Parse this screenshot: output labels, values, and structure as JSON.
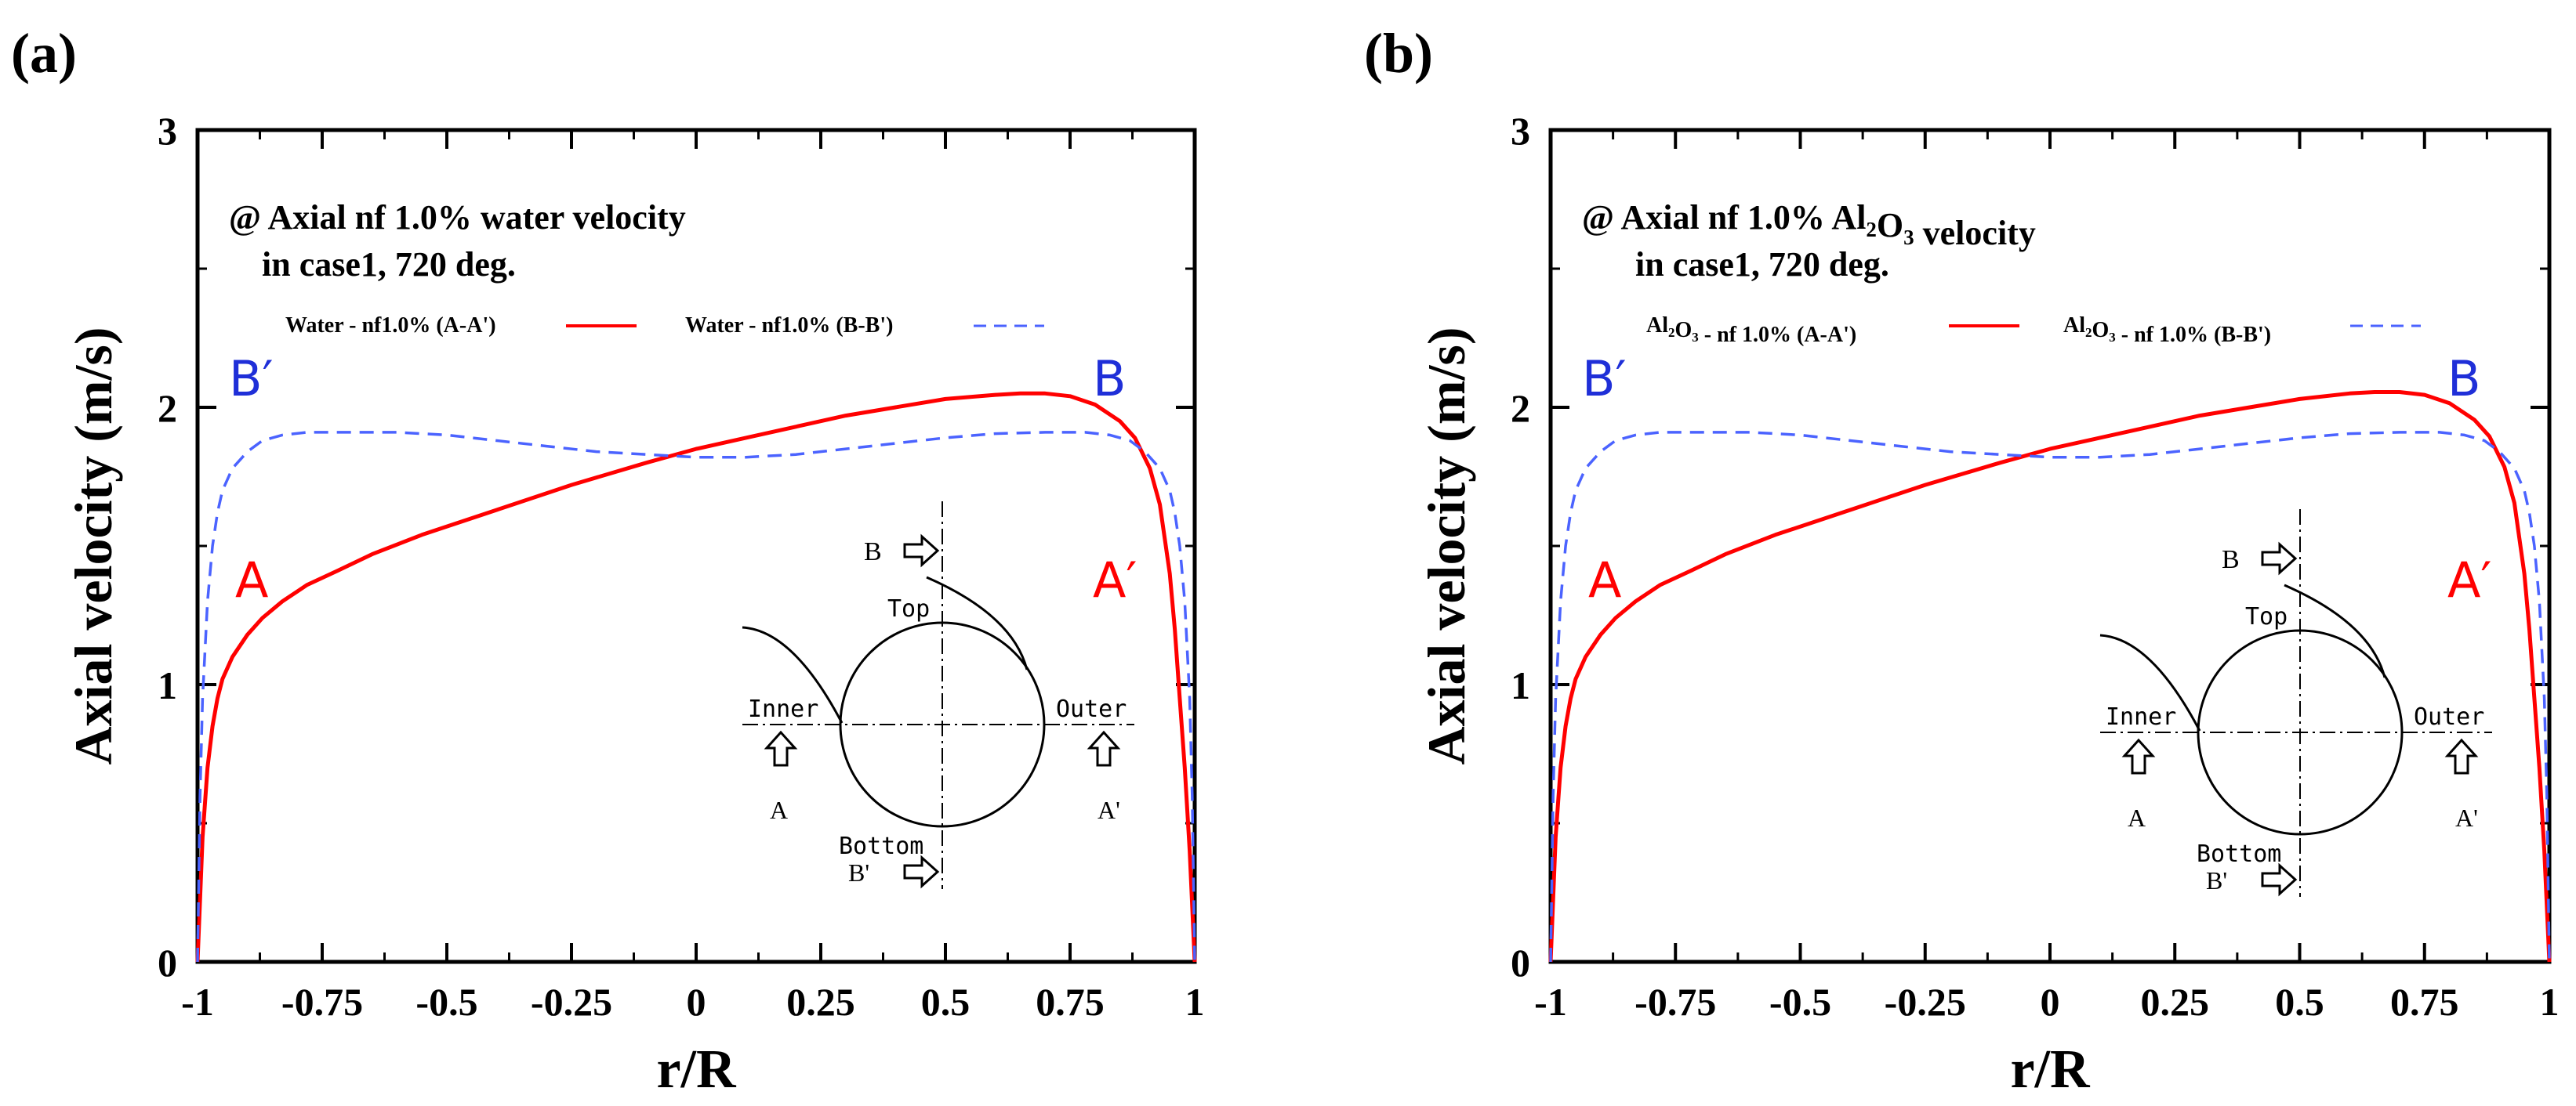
{
  "chart_data": [
    {
      "type": "line",
      "panel_label": "(a)",
      "annotation_lines": [
        "@ Axial nf 1.0% water velocity",
        "in case1, 720 deg."
      ],
      "xlabel": "r/R",
      "ylabel": "Axial velocity (m/s)",
      "xlim": [
        -1,
        1
      ],
      "ylim": [
        0,
        3
      ],
      "xticks": [
        -1,
        -0.75,
        -0.5,
        -0.25,
        0,
        0.25,
        0.5,
        0.75,
        1
      ],
      "xtick_labels": [
        "-1",
        "-0.75",
        "-0.5",
        "-0.25",
        "0",
        "0.25",
        "0.5",
        "0.75",
        "1"
      ],
      "yticks": [
        0,
        1,
        2,
        3
      ],
      "ytick_labels": [
        "0",
        "1",
        "2",
        "3"
      ],
      "grid": false,
      "legend_position": "top",
      "series": [
        {
          "name": "Water - nf1.0% (A-A')",
          "style": "solid",
          "color": "#ff0000",
          "x": [
            -1,
            -0.99,
            -0.98,
            -0.97,
            -0.96,
            -0.95,
            -0.93,
            -0.9,
            -0.87,
            -0.83,
            -0.78,
            -0.72,
            -0.65,
            -0.55,
            -0.4,
            -0.25,
            -0.1,
            0,
            0.1,
            0.2,
            0.3,
            0.4,
            0.5,
            0.6,
            0.65,
            0.7,
            0.75,
            0.8,
            0.85,
            0.88,
            0.91,
            0.93,
            0.95,
            0.96,
            0.97,
            0.98,
            0.99,
            1
          ],
          "y": [
            0,
            0.45,
            0.7,
            0.85,
            0.95,
            1.02,
            1.1,
            1.18,
            1.24,
            1.3,
            1.36,
            1.41,
            1.47,
            1.54,
            1.63,
            1.72,
            1.8,
            1.85,
            1.89,
            1.93,
            1.97,
            2.0,
            2.03,
            2.045,
            2.05,
            2.05,
            2.04,
            2.01,
            1.95,
            1.89,
            1.78,
            1.65,
            1.4,
            1.2,
            0.95,
            0.7,
            0.4,
            0
          ]
        },
        {
          "name": "Water - nf1.0% (B-B')",
          "style": "dashed",
          "color": "#4b63ff",
          "x": [
            -1,
            -0.995,
            -0.99,
            -0.98,
            -0.97,
            -0.96,
            -0.95,
            -0.93,
            -0.9,
            -0.87,
            -0.83,
            -0.78,
            -0.7,
            -0.6,
            -0.5,
            -0.4,
            -0.3,
            -0.2,
            -0.1,
            0,
            0.1,
            0.2,
            0.3,
            0.4,
            0.5,
            0.6,
            0.7,
            0.78,
            0.83,
            0.87,
            0.9,
            0.93,
            0.95,
            0.96,
            0.97,
            0.98,
            0.99,
            0.995,
            1
          ],
          "y": [
            0,
            0.6,
            0.95,
            1.3,
            1.5,
            1.62,
            1.7,
            1.78,
            1.84,
            1.88,
            1.9,
            1.91,
            1.91,
            1.91,
            1.9,
            1.88,
            1.86,
            1.84,
            1.83,
            1.82,
            1.82,
            1.83,
            1.85,
            1.87,
            1.89,
            1.905,
            1.91,
            1.91,
            1.9,
            1.88,
            1.84,
            1.78,
            1.7,
            1.62,
            1.5,
            1.3,
            0.95,
            0.6,
            0
          ]
        }
      ],
      "overlay_labels": {
        "b_prime": "B′",
        "b": "B",
        "a": "A",
        "a_prime": "A′"
      },
      "diagram_labels": {
        "b": "B",
        "top": "Top",
        "inner": "Inner",
        "outer": "Outer",
        "a": "A",
        "a_prime": "A'",
        "bottom": "Bottom",
        "b_prime": "B'"
      }
    },
    {
      "type": "line",
      "panel_label": "(b)",
      "annotation_lines": [
        "@ Axial nf 1.0% Al₂O₃ velocity",
        "in case1, 720 deg."
      ],
      "xlabel": "r/R",
      "ylabel": "Axial velocity (m/s)",
      "xlim": [
        -1,
        1
      ],
      "ylim": [
        0,
        3
      ],
      "xticks": [
        -1,
        -0.75,
        -0.5,
        -0.25,
        0,
        0.25,
        0.5,
        0.75,
        1
      ],
      "xtick_labels": [
        "-1",
        "-0.75",
        "-0.5",
        "-0.25",
        "0",
        "0.25",
        "0.5",
        "0.75",
        "1"
      ],
      "yticks": [
        0,
        1,
        2,
        3
      ],
      "ytick_labels": [
        "0",
        "1",
        "2",
        "3"
      ],
      "grid": false,
      "legend_position": "top",
      "series": [
        {
          "name": "Al₂O₃ - nf 1.0% (A-A')",
          "style": "solid",
          "color": "#ff0000",
          "x": [
            -1,
            -0.99,
            -0.98,
            -0.97,
            -0.96,
            -0.95,
            -0.93,
            -0.9,
            -0.87,
            -0.83,
            -0.78,
            -0.72,
            -0.65,
            -0.55,
            -0.4,
            -0.25,
            -0.1,
            0,
            0.1,
            0.2,
            0.3,
            0.4,
            0.5,
            0.6,
            0.65,
            0.7,
            0.75,
            0.8,
            0.85,
            0.88,
            0.91,
            0.93,
            0.95,
            0.96,
            0.97,
            0.98,
            0.99,
            1
          ],
          "y": [
            0,
            0.45,
            0.7,
            0.85,
            0.95,
            1.02,
            1.1,
            1.18,
            1.24,
            1.3,
            1.36,
            1.41,
            1.47,
            1.54,
            1.63,
            1.72,
            1.8,
            1.85,
            1.89,
            1.93,
            1.97,
            2.0,
            2.03,
            2.05,
            2.055,
            2.055,
            2.045,
            2.015,
            1.955,
            1.895,
            1.785,
            1.655,
            1.4,
            1.2,
            0.95,
            0.7,
            0.4,
            0
          ]
        },
        {
          "name": "Al₂O₃ - nf 1.0% (B-B')",
          "style": "dashed",
          "color": "#4b63ff",
          "x": [
            -1,
            -0.995,
            -0.99,
            -0.98,
            -0.97,
            -0.96,
            -0.95,
            -0.93,
            -0.9,
            -0.87,
            -0.83,
            -0.78,
            -0.7,
            -0.6,
            -0.5,
            -0.4,
            -0.3,
            -0.2,
            -0.1,
            0,
            0.1,
            0.2,
            0.3,
            0.4,
            0.5,
            0.6,
            0.7,
            0.78,
            0.83,
            0.87,
            0.9,
            0.93,
            0.95,
            0.96,
            0.97,
            0.98,
            0.99,
            0.995,
            1
          ],
          "y": [
            0,
            0.6,
            0.95,
            1.3,
            1.5,
            1.62,
            1.7,
            1.78,
            1.84,
            1.88,
            1.9,
            1.91,
            1.91,
            1.91,
            1.9,
            1.88,
            1.86,
            1.84,
            1.83,
            1.82,
            1.82,
            1.83,
            1.85,
            1.87,
            1.89,
            1.905,
            1.91,
            1.91,
            1.9,
            1.88,
            1.84,
            1.78,
            1.7,
            1.62,
            1.5,
            1.3,
            0.95,
            0.6,
            0
          ]
        }
      ],
      "overlay_labels": {
        "b_prime": "B′",
        "b": "B",
        "a": "A",
        "a_prime": "A′"
      },
      "diagram_labels": {
        "b": "B",
        "top": "Top",
        "inner": "Inner",
        "outer": "Outer",
        "a": "A",
        "a_prime": "A'",
        "bottom": "Bottom",
        "b_prime": "B'"
      }
    }
  ]
}
